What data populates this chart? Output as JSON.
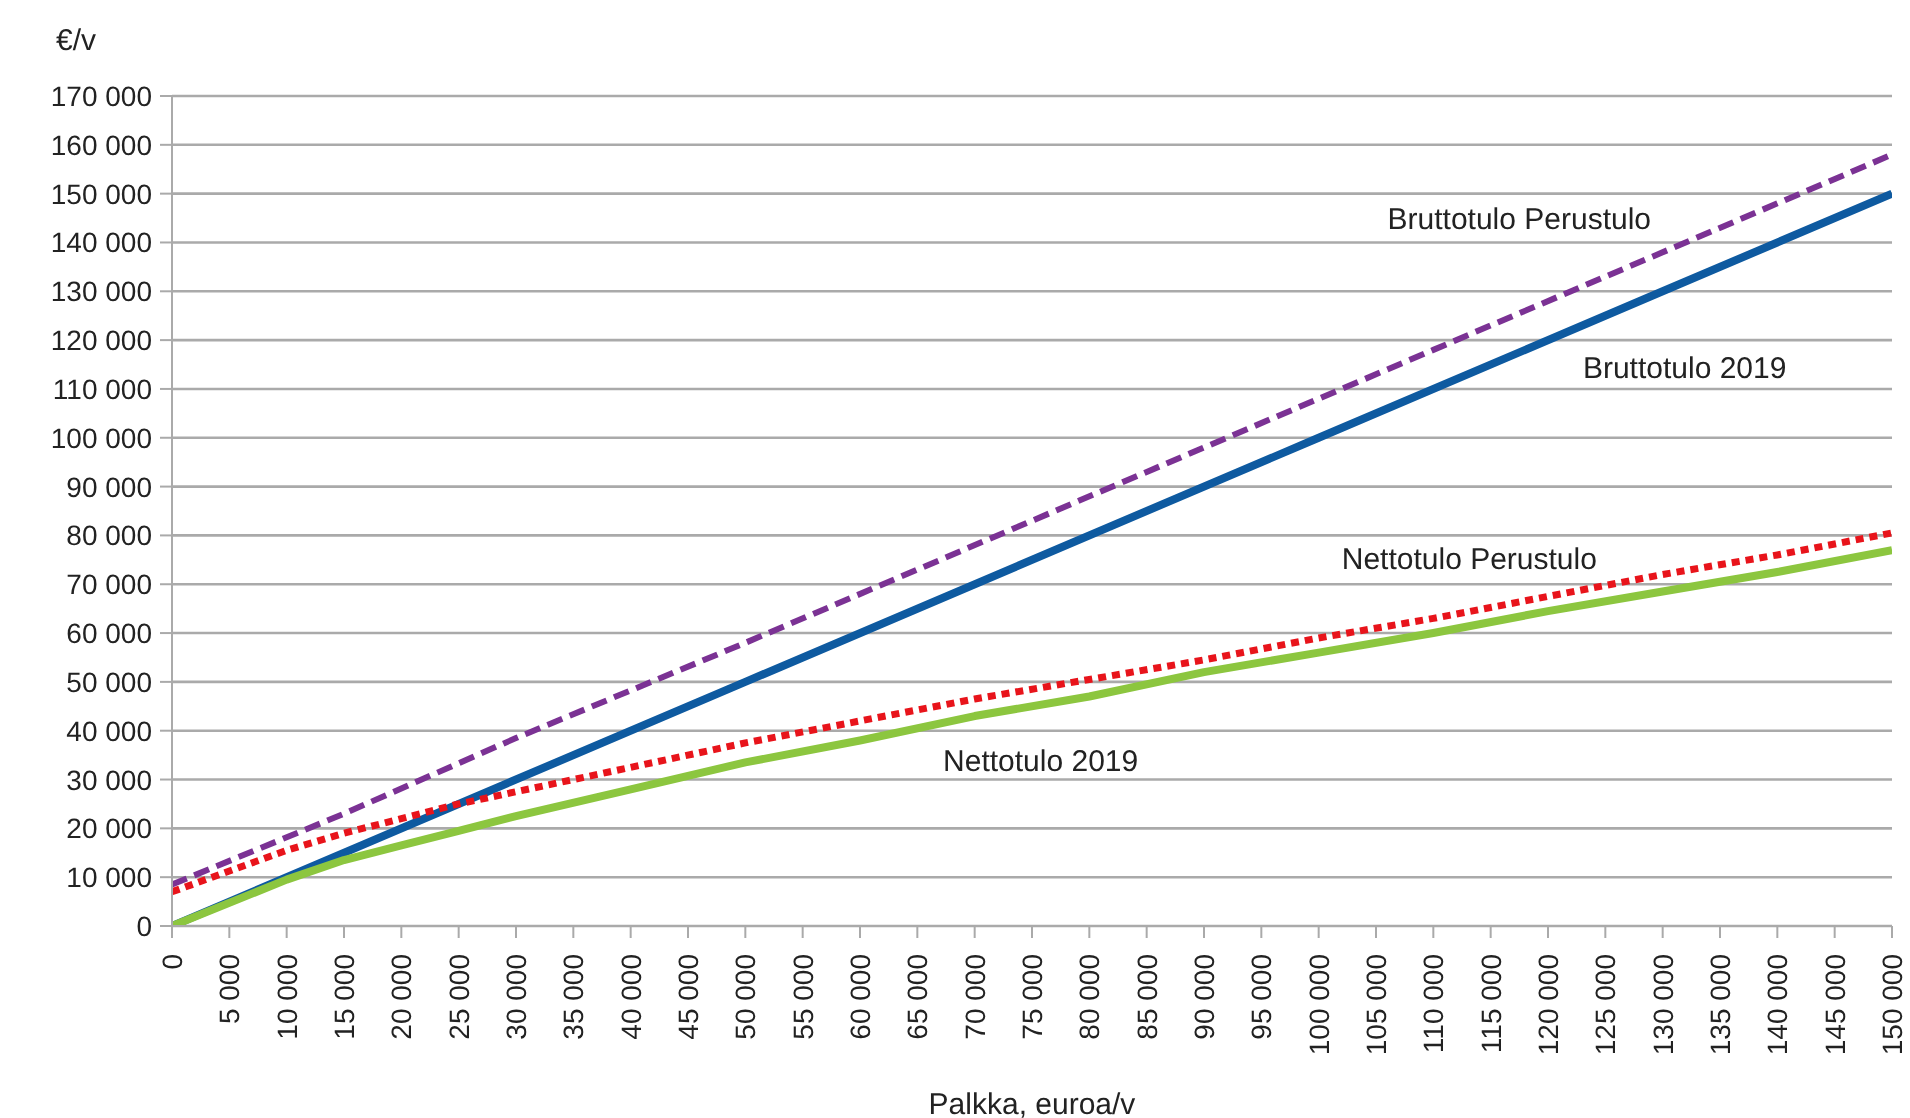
{
  "chart_data": {
    "type": "line",
    "xlabel": "Palkka, euroa/v",
    "ylabel": "€/v",
    "xlim": [
      0,
      150000
    ],
    "xticks": [
      0,
      {
        "value": 5000,
        "label": "5 000"
      },
      {
        "value": 10000,
        "label": "10 000"
      },
      {
        "value": 15000,
        "label": "15 000"
      },
      {
        "value": 20000,
        "label": "20 000"
      },
      {
        "value": 25000,
        "label": "25 000"
      },
      {
        "value": 30000,
        "label": "30 000"
      },
      {
        "value": 35000,
        "label": "35 000"
      },
      {
        "value": 40000,
        "label": "40 000"
      },
      {
        "value": 45000,
        "label": "45 000"
      },
      {
        "value": 50000,
        "label": "50 000"
      },
      {
        "value": 55000,
        "label": "55 000"
      },
      {
        "value": 60000,
        "label": "60 000"
      },
      {
        "value": 65000,
        "label": "65 000"
      },
      {
        "value": 70000,
        "label": "70 000"
      },
      {
        "value": 75000,
        "label": "75 000"
      },
      {
        "value": 80000,
        "label": "80 000"
      },
      {
        "value": 85000,
        "label": "85 000"
      },
      {
        "value": 90000,
        "label": "90 000"
      },
      {
        "value": 95000,
        "label": "95 000"
      },
      {
        "value": 100000,
        "label": "100 000"
      },
      {
        "value": 105000,
        "label": "105 000"
      },
      {
        "value": 110000,
        "label": "110 000"
      },
      {
        "value": 115000,
        "label": "115 000"
      },
      {
        "value": 120000,
        "label": "120 000"
      },
      {
        "value": 125000,
        "label": "125 000"
      },
      {
        "value": 130000,
        "label": "130 000"
      },
      {
        "value": 135000,
        "label": "135 000"
      },
      {
        "value": 140000,
        "label": "140 000"
      },
      {
        "value": 145000,
        "label": "145 000"
      },
      {
        "value": 150000,
        "label": "150 000"
      }
    ],
    "ylim": [
      0,
      170000
    ],
    "yticks": [
      0,
      {
        "value": 10000,
        "label": "10 000"
      },
      {
        "value": 20000,
        "label": "20 000"
      },
      {
        "value": 30000,
        "label": "30 000"
      },
      {
        "value": 40000,
        "label": "40 000"
      },
      {
        "value": 50000,
        "label": "50 000"
      },
      {
        "value": 60000,
        "label": "60 000"
      },
      {
        "value": 70000,
        "label": "70 000"
      },
      {
        "value": 80000,
        "label": "80 000"
      },
      {
        "value": 90000,
        "label": "90 000"
      },
      {
        "value": 100000,
        "label": "100 000"
      },
      {
        "value": 110000,
        "label": "110 000"
      },
      {
        "value": 120000,
        "label": "120 000"
      },
      {
        "value": 130000,
        "label": "130 000"
      },
      {
        "value": 140000,
        "label": "140 000"
      },
      {
        "value": 150000,
        "label": "150 000"
      },
      {
        "value": 160000,
        "label": "160 000"
      },
      {
        "value": 170000,
        "label": "170 000"
      }
    ],
    "grid": "y",
    "legend": false,
    "marker": "none",
    "series": [
      {
        "name": "Bruttotulo Perustulo",
        "color": "#7b3294",
        "line_style": "dashed",
        "x": [
          0,
          15000,
          30000,
          50000,
          100000,
          110000,
          150000
        ],
        "values": [
          8500,
          23000,
          38500,
          58000,
          108000,
          118000,
          158000
        ]
      },
      {
        "name": "Bruttotulo 2019",
        "color": "#0e5aa0",
        "line_style": "solid",
        "x": [
          0,
          50000,
          100000,
          130000,
          150000
        ],
        "values": [
          0,
          50000,
          100000,
          130000,
          150000
        ]
      },
      {
        "name": "Nettotulo Perustulo",
        "color": "#e8141b",
        "line_style": "dotted",
        "x": [
          0,
          10000,
          15000,
          20000,
          25000,
          30000,
          40000,
          50000,
          60000,
          70000,
          80000,
          90000,
          100000,
          110000,
          120000,
          130000,
          140000,
          150000
        ],
        "values": [
          7000,
          15500,
          19000,
          22000,
          25000,
          27500,
          32500,
          37500,
          42000,
          46500,
          50500,
          54500,
          59000,
          63000,
          67500,
          72000,
          76000,
          80500
        ]
      },
      {
        "name": "Nettotulo 2019",
        "color": "#8cc63f",
        "line_style": "solid",
        "x": [
          0,
          10000,
          15000,
          20000,
          25000,
          30000,
          40000,
          50000,
          60000,
          70000,
          80000,
          90000,
          100000,
          110000,
          120000,
          130000,
          140000,
          150000
        ],
        "values": [
          0,
          9500,
          13500,
          16500,
          19500,
          22500,
          28000,
          33500,
          38000,
          43000,
          47000,
          52000,
          56000,
          60000,
          64500,
          68500,
          72500,
          77000
        ]
      }
    ]
  }
}
